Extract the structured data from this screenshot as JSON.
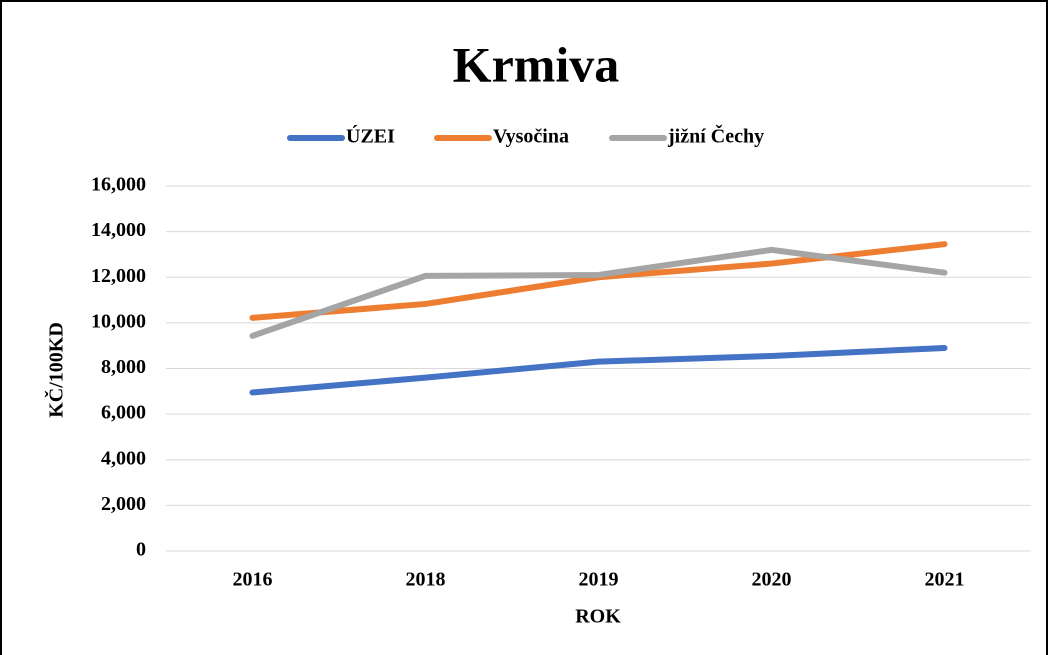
{
  "chart_data": {
    "type": "line",
    "title": "Krmiva",
    "x_label": "ROK",
    "y_label": "KČ/100KD",
    "categories": [
      "2016",
      "2018",
      "2019",
      "2020",
      "2021"
    ],
    "series": [
      {
        "name": "ÚZEI",
        "color": "#4472c4",
        "values": [
          6950,
          7600,
          8300,
          8550,
          8900
        ]
      },
      {
        "name": "Vysočina",
        "color": "#ed7d31",
        "values": [
          10220,
          10830,
          12000,
          12600,
          13450
        ]
      },
      {
        "name": "jižní Čechy",
        "color": "#a5a5a5",
        "values": [
          9430,
          12060,
          12100,
          13200,
          12200
        ]
      }
    ],
    "ylim": [
      0,
      16000
    ],
    "yticks": [
      0,
      {
        "value": 2000,
        "label": "2,000"
      },
      {
        "value": 4000,
        "label": "4,000"
      },
      {
        "value": 6000,
        "label": "6,000"
      },
      {
        "value": 8000,
        "label": "8,000"
      },
      {
        "value": 10000,
        "label": "10,000"
      },
      {
        "value": 12000,
        "label": "12,000"
      },
      {
        "value": 14000,
        "label": "14,000"
      },
      {
        "value": 16000,
        "label": "16,000"
      }
    ],
    "grid": true,
    "legend": "top"
  }
}
